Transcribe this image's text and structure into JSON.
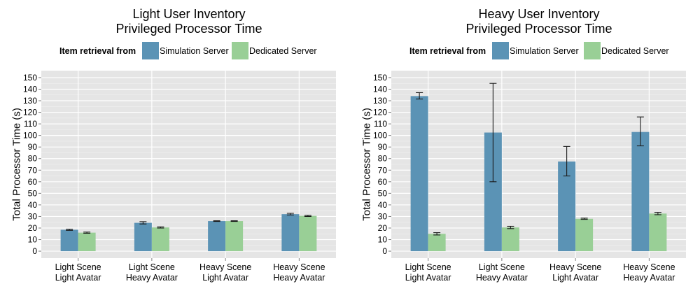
{
  "chart_data": [
    {
      "type": "bar",
      "title": [
        "Light User Inventory",
        "Privileged Processor Time"
      ],
      "ylabel": "Total Processor Time (s)",
      "xlabel": "",
      "ylim": [
        -6,
        156
      ],
      "yticks": [
        0,
        10,
        20,
        30,
        40,
        50,
        60,
        70,
        80,
        90,
        100,
        110,
        120,
        130,
        140,
        150
      ],
      "grid": true,
      "legend": {
        "title": "Item retrieval from",
        "placement": "top"
      },
      "categories": [
        [
          "Light Scene",
          "Light Avatar"
        ],
        [
          "Light Scene",
          "Heavy Avatar"
        ],
        [
          "Heavy Scene",
          "Light Avatar"
        ],
        [
          "Heavy Scene",
          "Heavy Avatar"
        ]
      ],
      "series": [
        {
          "name": "Simulation Server",
          "color": "#5b93b5",
          "values": [
            18.5,
            24.5,
            26.0,
            32.0
          ],
          "err_low": [
            18.0,
            23.5,
            25.7,
            31.3
          ],
          "err_high": [
            19.0,
            25.5,
            26.3,
            32.7
          ]
        },
        {
          "name": "Dedicated Server",
          "color": "#99cf96",
          "values": [
            16.0,
            20.5,
            26.0,
            30.5
          ],
          "err_low": [
            15.5,
            20.0,
            25.7,
            30.0
          ],
          "err_high": [
            16.5,
            21.0,
            26.3,
            31.0
          ]
        }
      ]
    },
    {
      "type": "bar",
      "title": [
        "Heavy User Inventory",
        "Privileged Processor Time"
      ],
      "ylabel": "Total Processor Time (s)",
      "xlabel": "",
      "ylim": [
        -6,
        156
      ],
      "yticks": [
        0,
        10,
        20,
        30,
        40,
        50,
        60,
        70,
        80,
        90,
        100,
        110,
        120,
        130,
        140,
        150
      ],
      "grid": true,
      "legend": {
        "title": "Item retrieval from",
        "placement": "top"
      },
      "categories": [
        [
          "Light Scene",
          "Light Avatar"
        ],
        [
          "Light Scene",
          "Heavy Avatar"
        ],
        [
          "Heavy Scene",
          "Light Avatar"
        ],
        [
          "Heavy Scene",
          "Heavy Avatar"
        ]
      ],
      "series": [
        {
          "name": "Simulation Server",
          "color": "#5b93b5",
          "values": [
            134,
            102.5,
            77.5,
            103
          ],
          "err_low": [
            131.5,
            60,
            65,
            91
          ],
          "err_high": [
            137,
            145,
            90.5,
            116
          ]
        },
        {
          "name": "Dedicated Server",
          "color": "#99cf96",
          "values": [
            15,
            20.5,
            28,
            32.5
          ],
          "err_low": [
            14,
            19.5,
            27.5,
            31.5
          ],
          "err_high": [
            16,
            21.5,
            28.5,
            33.5
          ]
        }
      ]
    }
  ]
}
